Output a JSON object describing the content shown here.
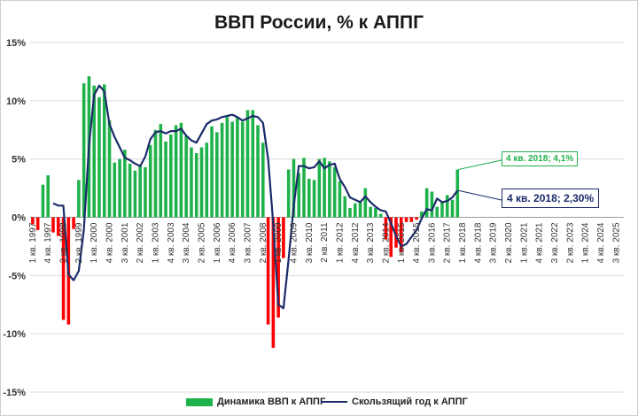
{
  "chart_data": {
    "type": "bar+line",
    "title": "ВВП России, % к АППГ",
    "xlabel": "",
    "ylabel": "",
    "ylim": [
      -15,
      15
    ],
    "y_ticks": [
      "15%",
      "10%",
      "5%",
      "0%",
      "-5%",
      "-10%",
      "-15%"
    ],
    "y_tick_values": [
      15,
      10,
      5,
      0,
      -5,
      -10,
      -15
    ],
    "grid": "horizontal",
    "legend_position": "bottom",
    "colors": {
      "positive": "#1fb24a",
      "negative": "#ff0000",
      "line": "#1b2b6b"
    },
    "x_tick_labels": [
      "1 кв. 1997",
      "4 кв. 1997",
      "3 кв. 1998",
      "2 кв. 1999",
      "1 кв. 2000",
      "4 кв. 2000",
      "3 кв. 2001",
      "2 кв. 2002",
      "1 кв. 2003",
      "4 кв. 2003",
      "3 кв. 2004",
      "2 кв. 2005",
      "1 кв. 2006",
      "4 кв. 2006",
      "3 кв. 2007",
      "2 кв. 2008",
      "1 кв. 2009",
      "4 кв. 2009",
      "3 кв. 2010",
      "2 кв. 2011",
      "1 кв. 2012",
      "4 кв. 2012",
      "3 кв. 2013",
      "2 кв. 2014",
      "1 кв. 2015",
      "4 кв. 2015",
      "3 кв. 2016",
      "2 кв. 2017",
      "1 кв. 2018",
      "4 кв. 2018",
      "3 кв. 2019",
      "2 кв. 2020",
      "1 кв. 2021",
      "4 кв. 2021",
      "3 кв. 2022",
      "2 кв. 2023",
      "1 кв. 2024",
      "4 кв. 2024",
      "3 кв. 2025"
    ],
    "series": [
      {
        "name": "Динамика ВВП к АППГ",
        "type": "bar",
        "values": [
          -0.6,
          -1.1,
          2.8,
          3.6,
          -1.3,
          -1.6,
          -8.8,
          -9.2,
          -1.0,
          3.2,
          11.5,
          12.1,
          11.3,
          10.3,
          11.4,
          8.3,
          4.7,
          5.0,
          5.8,
          4.6,
          4.0,
          4.4,
          4.3,
          6.2,
          7.5,
          8.0,
          6.5,
          7.1,
          7.9,
          8.1,
          7.0,
          6.0,
          5.5,
          6.0,
          6.4,
          7.8,
          7.3,
          8.1,
          8.6,
          8.2,
          8.6,
          8.2,
          9.2,
          9.2,
          7.9,
          6.4,
          -9.2,
          -11.2,
          -8.6,
          -3.5,
          4.1,
          5.0,
          3.8,
          5.1,
          3.3,
          3.2,
          5.0,
          5.1,
          4.8,
          4.3,
          3.1,
          1.8,
          0.8,
          1.2,
          1.3,
          2.5,
          0.9,
          0.8,
          0.3,
          -1.9,
          -3.4,
          -2.6,
          -3.0,
          -0.4,
          -0.4,
          -0.2,
          0.5,
          2.5,
          2.2,
          0.9,
          1.3,
          1.9,
          1.5,
          4.1
        ],
        "last_label": "4 кв. 2018; 4,1%"
      },
      {
        "name": "Скользящий год к АППГ",
        "type": "line",
        "values": [
          null,
          null,
          null,
          null,
          1.2,
          1.0,
          1.0,
          -4.9,
          -5.4,
          -4.6,
          -1.1,
          6.1,
          10.5,
          11.3,
          10.8,
          8.0,
          6.9,
          6.0,
          5.1,
          4.9,
          4.6,
          4.4,
          5.2,
          6.7,
          7.3,
          7.4,
          7.2,
          7.4,
          7.4,
          7.6,
          7.0,
          6.6,
          6.4,
          7.2,
          8.0,
          8.3,
          8.4,
          8.6,
          8.7,
          8.8,
          8.6,
          8.3,
          8.5,
          8.7,
          8.6,
          8.1,
          5.0,
          -0.6,
          -7.5,
          -7.8,
          -3.6,
          1.0,
          4.4,
          4.4,
          4.2,
          4.3,
          4.8,
          4.2,
          4.5,
          4.6,
          3.3,
          2.6,
          1.7,
          1.5,
          1.3,
          1.8,
          1.3,
          0.9,
          0.6,
          0.5,
          -0.5,
          -1.6,
          -2.5,
          -2.3,
          -1.7,
          -1.1,
          -0.1,
          0.7,
          0.6,
          1.6,
          1.3,
          1.4,
          1.7,
          2.3
        ],
        "last_label": "4 кв. 2018; 2,30%"
      }
    ]
  }
}
